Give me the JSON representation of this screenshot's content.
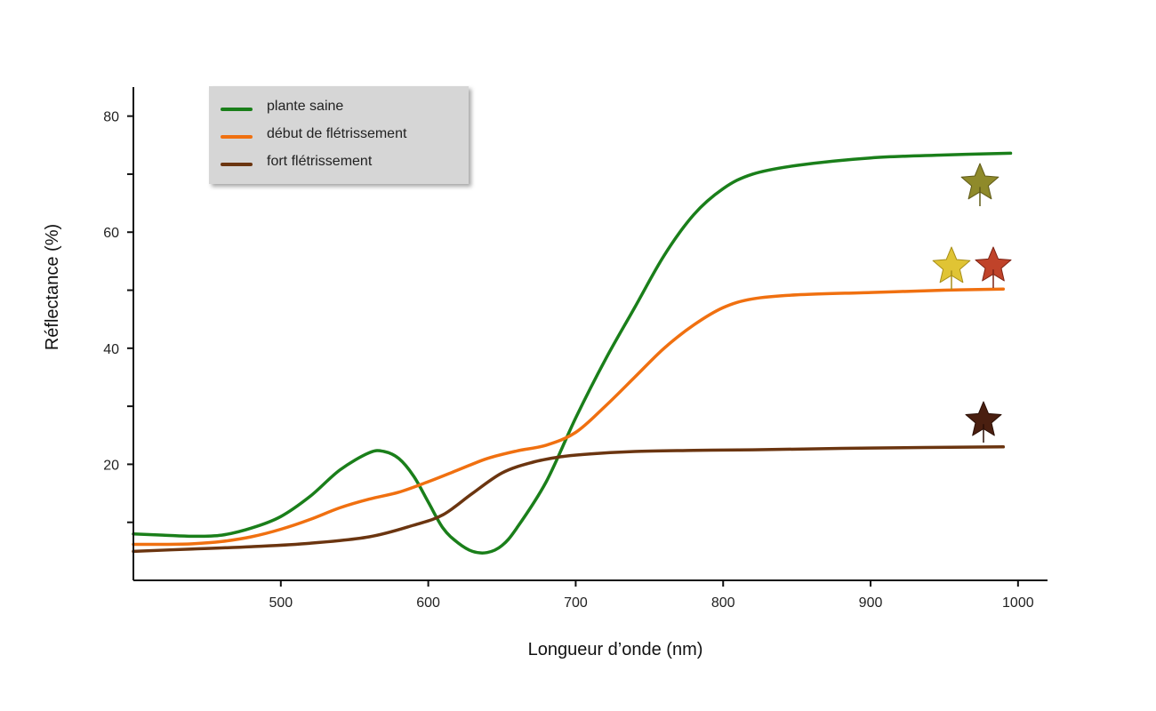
{
  "chart_data": {
    "type": "line",
    "xlabel": "Longueur d’onde (nm)",
    "ylabel": "Réflectance (%)",
    "xlim": [
      400,
      1020
    ],
    "ylim": [
      0,
      85
    ],
    "xticks": [
      500,
      600,
      700,
      800,
      900,
      1000
    ],
    "yticks": [
      20,
      40,
      60,
      80
    ],
    "grid": false,
    "legend_position": "top-left",
    "series": [
      {
        "name": "plante saine",
        "color": "#1a7f1a",
        "icon": "olive-leaf-icon",
        "x": [
          400,
          420,
          440,
          460,
          480,
          500,
          520,
          540,
          560,
          570,
          580,
          590,
          600,
          610,
          620,
          630,
          640,
          650,
          660,
          680,
          700,
          720,
          740,
          760,
          780,
          800,
          820,
          850,
          900,
          950,
          995
        ],
        "y": [
          8,
          7.8,
          7.6,
          7.8,
          9,
          11,
          14.5,
          19,
          22,
          22.2,
          21,
          18,
          13.5,
          9,
          6.5,
          5,
          4.8,
          6,
          9,
          17,
          28,
          38,
          47,
          56,
          63,
          67.5,
          70,
          71.5,
          72.8,
          73.3,
          73.6
        ]
      },
      {
        "name": "début de flétrissement",
        "color": "#f07010",
        "icon": "yellow-leaf-icon",
        "x": [
          400,
          420,
          440,
          460,
          480,
          500,
          520,
          540,
          560,
          580,
          600,
          620,
          640,
          660,
          680,
          700,
          720,
          740,
          760,
          780,
          800,
          820,
          850,
          900,
          950,
          990
        ],
        "y": [
          6.2,
          6.2,
          6.3,
          6.7,
          7.5,
          8.8,
          10.5,
          12.5,
          14,
          15.2,
          17,
          19,
          21,
          22.3,
          23.3,
          25.5,
          30,
          35,
          40,
          44,
          47,
          48.5,
          49.2,
          49.6,
          50,
          50.2
        ]
      },
      {
        "name": "fort flétrissement",
        "color": "#6b3510",
        "icon": "red-leaf-icon",
        "x": [
          400,
          440,
          480,
          520,
          560,
          590,
          610,
          630,
          650,
          670,
          690,
          710,
          740,
          780,
          820,
          900,
          990
        ],
        "y": [
          5,
          5.4,
          5.8,
          6.4,
          7.5,
          9.5,
          11.3,
          15,
          18.5,
          20.3,
          21.3,
          21.8,
          22.2,
          22.4,
          22.5,
          22.8,
          23
        ]
      }
    ]
  }
}
